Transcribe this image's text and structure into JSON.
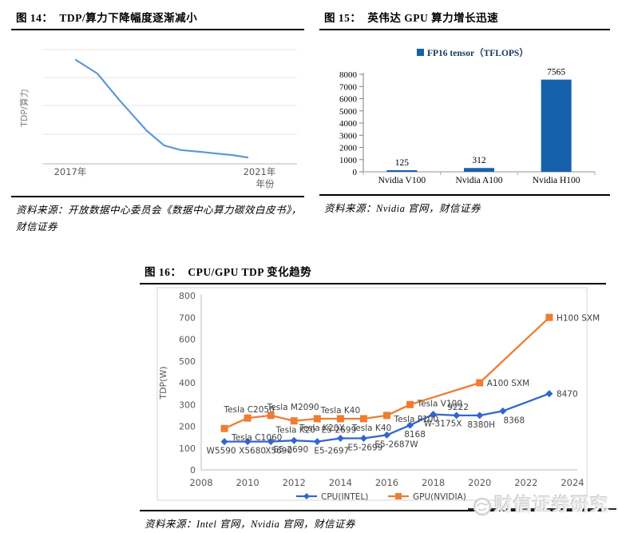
{
  "figures": {
    "fig14": {
      "title_prefix": "图 14：",
      "title": "TDP/算力下降幅度逐渐减小",
      "source": "资料来源：开放数据中心委员会《数据中心算力碳效白皮书》，财信证券"
    },
    "fig15": {
      "title_prefix": "图 15：",
      "title": "英伟达 GPU 算力增长迅速",
      "source": "资料来源：Nvidia 官网，财信证券"
    },
    "fig16": {
      "title_prefix": "图 16：",
      "title": "CPU/GPU TDP 变化趋势",
      "source": "资料来源：Intel 官网，Nvidia 官网，财信证券"
    }
  },
  "watermark": {
    "text": "财信证券研究"
  },
  "chart_data": [
    {
      "id": "fig14",
      "type": "line",
      "title": "TDP/算力下降幅度逐渐减小",
      "ylabel": "TDP/算力",
      "xlabel": "年份",
      "x_tick_labels": [
        "2017年",
        "2021年"
      ],
      "y_tick_labels": [],
      "grid": true,
      "line_color": "#5B9BD5",
      "x": [
        2017,
        2017.5,
        2018.03,
        2018.65,
        2019.06,
        2019.45,
        2019.9,
        2020.27,
        2020.64,
        2021
      ],
      "y_relative": [
        0.91,
        0.79,
        0.55,
        0.29,
        0.16,
        0.12,
        0.105,
        0.09,
        0.077,
        0.056
      ]
    },
    {
      "id": "fig15",
      "type": "bar",
      "legend": "FP16 tensor（TFLOPS）",
      "legend_color": "#17375E",
      "categories": [
        "Nvidia V100",
        "Nvidia A100",
        "Nvidia H100"
      ],
      "values": [
        125,
        312,
        7565
      ],
      "ylim": [
        0,
        8000
      ],
      "y_ticks": [
        0,
        1000,
        2000,
        3000,
        4000,
        5000,
        6000,
        7000,
        8000
      ],
      "grid": false,
      "bar_color": "#1661AC"
    },
    {
      "id": "fig16",
      "type": "line",
      "title": "CPU/GPU TDP 变化趋势",
      "ylabel": "TDP(W)",
      "ylim": [
        0,
        800
      ],
      "y_ticks": [
        0,
        100,
        200,
        300,
        400,
        500,
        600,
        700,
        800
      ],
      "xlim": [
        2008,
        2024
      ],
      "x_ticks": [
        2008,
        2010,
        2012,
        2014,
        2016,
        2018,
        2020,
        2022,
        2024
      ],
      "grid": false,
      "legend_position": "bottom",
      "series": [
        {
          "name": "CPU(INTEL)",
          "color": "#3366CC",
          "marker": "diamond",
          "points": [
            {
              "x": 2009,
              "y": 130,
              "label": "W5590",
              "pos": "below",
              "dx": -4
            },
            {
              "x": 2010,
              "y": 130,
              "label": "X5680",
              "pos": "below",
              "dx": 6
            },
            {
              "x": 2011,
              "y": 130,
              "label": "X5690",
              "pos": "below",
              "dx": 10
            },
            {
              "x": 2012,
              "y": 135,
              "label": "E5-2690",
              "pos": "below",
              "dx": -4
            },
            {
              "x": 2013,
              "y": 130,
              "label": "E5-2697",
              "pos": "below",
              "dx": 18
            },
            {
              "x": 2014,
              "y": 145,
              "label": "E5-2699",
              "pos": "above",
              "dx": -2
            },
            {
              "x": 2015,
              "y": 145,
              "label": "E5-2699",
              "pos": "below",
              "dx": 2
            },
            {
              "x": 2016,
              "y": 160,
              "label": "E5-2687W",
              "pos": "below",
              "dx": 12
            },
            {
              "x": 2017,
              "y": 205,
              "label": "8168",
              "pos": "below",
              "dx": 6
            },
            {
              "x": 2018,
              "y": 255,
              "label": "W-3175X",
              "pos": "below",
              "dx": 12
            },
            {
              "x": 2019,
              "y": 250,
              "label": "9222",
              "pos": "above",
              "dx": 2
            },
            {
              "x": 2020,
              "y": 250,
              "label": "8380H",
              "pos": "below",
              "dx": 2
            },
            {
              "x": 2021,
              "y": 270,
              "label": "8368",
              "pos": "below",
              "dx": 14
            },
            {
              "x": 2023,
              "y": 350,
              "label": "8470",
              "pos": "right"
            }
          ]
        },
        {
          "name": "GPU(NVIDIA)",
          "color": "#ED7D31",
          "marker": "square",
          "points": [
            {
              "x": 2009,
              "y": 190,
              "label": "Tesla C1060",
              "pos": "below-right",
              "dx": 2,
              "dy": 2
            },
            {
              "x": 2010,
              "y": 238,
              "label": "Tesla C2050",
              "pos": "above",
              "dx": 2
            },
            {
              "x": 2011,
              "y": 250,
              "label": "Tesla M2090",
              "pos": "above",
              "dx": 28
            },
            {
              "x": 2012,
              "y": 225,
              "label": "Tesla K20",
              "pos": "below",
              "dx": 2
            },
            {
              "x": 2013,
              "y": 235,
              "label": "Tesla K20X",
              "pos": "below",
              "dx": 6
            },
            {
              "x": 2014,
              "y": 235,
              "label": "Tesla K40",
              "pos": "above",
              "dx": 0
            },
            {
              "x": 2015,
              "y": 235,
              "label": "Tesla K40",
              "pos": "below",
              "dx": 10
            },
            {
              "x": 2016,
              "y": 250,
              "label": "Tesla P100",
              "pos": "right",
              "dy": 4
            },
            {
              "x": 2017,
              "y": 300,
              "label": "Tesla V100",
              "pos": "right",
              "dy": -2
            },
            {
              "x": 2020,
              "y": 400,
              "label": "A100 SXM",
              "pos": "right"
            },
            {
              "x": 2023,
              "y": 700,
              "label": "H100 SXM",
              "pos": "right"
            }
          ]
        }
      ]
    }
  ]
}
